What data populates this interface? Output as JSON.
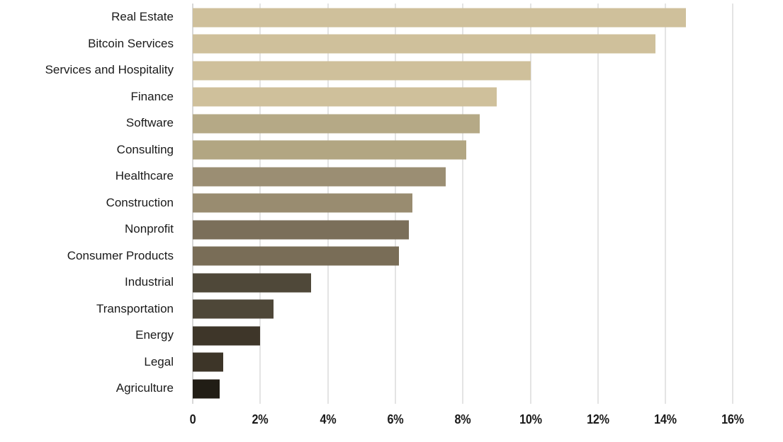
{
  "chart_data": {
    "type": "bar",
    "orientation": "horizontal",
    "title": "",
    "categories": [
      "Real Estate",
      "Bitcoin Services",
      "Services and Hospitality",
      "Finance",
      "Software",
      "Consulting",
      "Healthcare",
      "Construction",
      "Nonprofit",
      "Consumer Products",
      "Industrial",
      "Transportation",
      "Energy",
      "Legal",
      "Agriculture"
    ],
    "values": [
      14.6,
      13.7,
      10.0,
      9.0,
      8.5,
      8.1,
      7.5,
      6.5,
      6.4,
      6.1,
      3.5,
      2.4,
      2.0,
      0.9,
      0.8
    ],
    "unit": "percent",
    "value_labels_shown": false,
    "xlabel": "",
    "ylabel": "",
    "xlim": [
      0,
      16
    ],
    "x_ticks": [
      "0",
      "2%",
      "4%",
      "6%",
      "8%",
      "10%",
      "12%",
      "14%",
      "16%"
    ],
    "x_tick_values": [
      0,
      2,
      4,
      6,
      8,
      10,
      12,
      14,
      16
    ],
    "grid": "vertical-only",
    "legend": "none",
    "bar_colors": [
      "#cfc09b",
      "#cfc09b",
      "#cfc09b",
      "#cfc09b",
      "#b5a986",
      "#b2a682",
      "#9b8e73",
      "#998c70",
      "#7b6f5a",
      "#796d57",
      "#4f4839",
      "#4e4738",
      "#3e3629",
      "#3d3528",
      "#211d15"
    ],
    "colors": {
      "background": "#ffffff",
      "text": "#1a1a1a",
      "gridline": "#e4e4e4",
      "zero_line": "#d8d8d8"
    }
  }
}
